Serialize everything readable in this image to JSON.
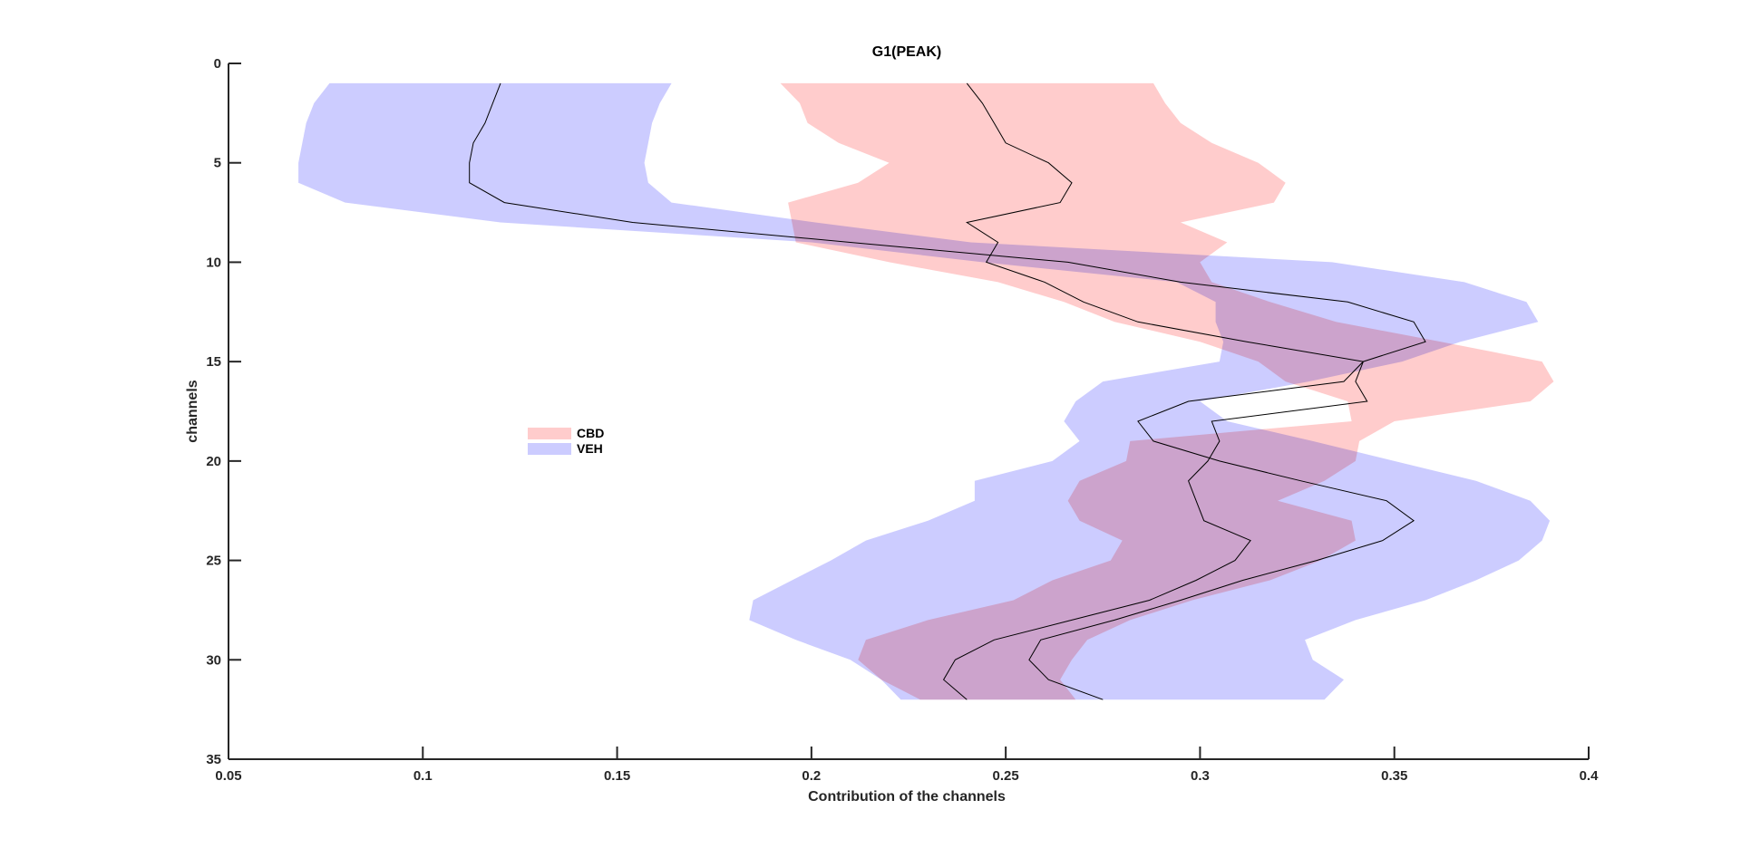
{
  "chart_data": {
    "type": "area",
    "orientation": "horizontal",
    "title": "G1(PEAK)",
    "xlabel": "Contribution of the channels",
    "ylabel": "channels",
    "xlim": [
      0.05,
      0.4
    ],
    "ylim": [
      0,
      35
    ],
    "y_reversed": true,
    "xticks": [
      0.05,
      0.1,
      0.15,
      0.2,
      0.25,
      0.3,
      0.35,
      0.4
    ],
    "xtick_labels": [
      "0.05",
      "0.1",
      "0.15",
      "0.2",
      "0.25",
      "0.3",
      "0.35",
      "0.4"
    ],
    "yticks": [
      0,
      5,
      10,
      15,
      20,
      25,
      30,
      35
    ],
    "ytick_labels": [
      "0",
      "5",
      "10",
      "15",
      "20",
      "25",
      "30",
      "35"
    ],
    "grid": false,
    "legend_position": "left",
    "channels": [
      1,
      2,
      3,
      4,
      5,
      6,
      7,
      8,
      9,
      10,
      11,
      12,
      13,
      14,
      15,
      16,
      17,
      18,
      19,
      20,
      21,
      22,
      23,
      24,
      25,
      26,
      27,
      28,
      29,
      30,
      31,
      32
    ],
    "series": [
      {
        "name": "CBD",
        "color": "#FFCCCC",
        "mean": [
          0.24,
          0.244,
          0.247,
          0.25,
          0.261,
          0.267,
          0.264,
          0.24,
          0.248,
          0.245,
          0.26,
          0.27,
          0.284,
          0.312,
          0.342,
          0.34,
          0.343,
          0.303,
          0.305,
          0.302,
          0.297,
          0.299,
          0.301,
          0.313,
          0.309,
          0.299,
          0.287,
          0.267,
          0.247,
          0.237,
          0.234,
          0.24
        ],
        "lower": [
          0.192,
          0.197,
          0.199,
          0.207,
          0.22,
          0.212,
          0.194,
          0.195,
          0.196,
          0.22,
          0.248,
          0.265,
          0.278,
          0.3,
          0.315,
          0.322,
          0.338,
          0.339,
          0.282,
          0.281,
          0.269,
          0.266,
          0.269,
          0.28,
          0.277,
          0.262,
          0.252,
          0.23,
          0.214,
          0.212,
          0.218,
          0.228
        ],
        "upper": [
          0.288,
          0.291,
          0.295,
          0.303,
          0.315,
          0.322,
          0.319,
          0.295,
          0.307,
          0.3,
          0.303,
          0.318,
          0.335,
          0.362,
          0.388,
          0.391,
          0.385,
          0.35,
          0.341,
          0.34,
          0.332,
          0.32,
          0.339,
          0.34,
          0.331,
          0.318,
          0.298,
          0.282,
          0.271,
          0.267,
          0.264,
          0.268
        ]
      },
      {
        "name": "VEH",
        "color": "#CCCCFF",
        "mean": [
          0.12,
          0.118,
          0.116,
          0.113,
          0.112,
          0.112,
          0.121,
          0.154,
          0.21,
          0.266,
          0.295,
          0.338,
          0.355,
          0.358,
          0.342,
          0.337,
          0.297,
          0.284,
          0.288,
          0.305,
          0.326,
          0.348,
          0.355,
          0.347,
          0.33,
          0.311,
          0.295,
          0.278,
          0.259,
          0.256,
          0.261,
          0.275
        ],
        "lower": [
          0.076,
          0.072,
          0.07,
          0.069,
          0.068,
          0.068,
          0.08,
          0.12,
          0.2,
          0.244,
          0.294,
          0.304,
          0.304,
          0.306,
          0.305,
          0.275,
          0.268,
          0.265,
          0.269,
          0.262,
          0.242,
          0.242,
          0.23,
          0.214,
          0.205,
          0.195,
          0.185,
          0.184,
          0.196,
          0.21,
          0.218,
          0.223
        ],
        "upper": [
          0.164,
          0.161,
          0.159,
          0.158,
          0.157,
          0.158,
          0.164,
          0.201,
          0.241,
          0.334,
          0.368,
          0.384,
          0.387,
          0.367,
          0.352,
          0.328,
          0.3,
          0.307,
          0.329,
          0.35,
          0.371,
          0.385,
          0.39,
          0.388,
          0.382,
          0.371,
          0.358,
          0.34,
          0.327,
          0.329,
          0.337,
          0.332
        ]
      }
    ]
  }
}
